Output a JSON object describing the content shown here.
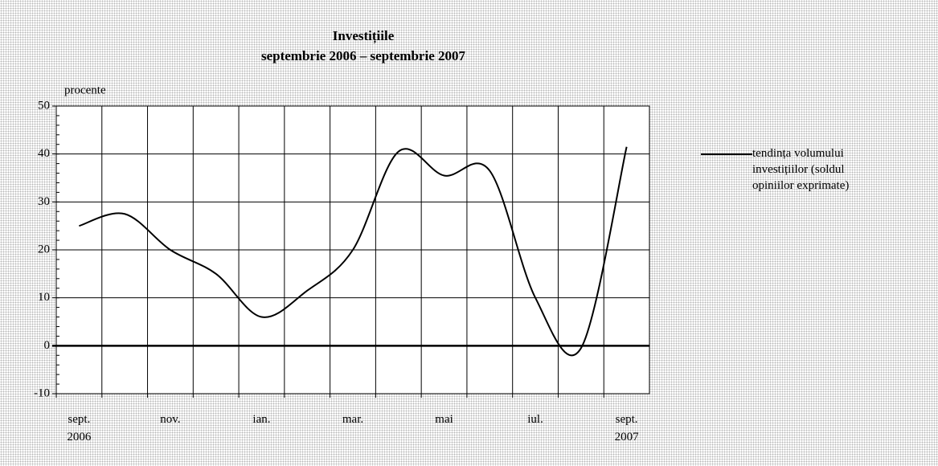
{
  "chart_data": {
    "type": "line",
    "title": "Investițiile",
    "subtitle": "septembrie 2006 – septembrie 2007",
    "ylabel": "procente",
    "categories": [
      "sept.\n2006",
      null,
      "nov.",
      null,
      "ian.",
      null,
      "mar.",
      null,
      "mai",
      null,
      "iul.",
      null,
      "sept.\n2007"
    ],
    "series": [
      {
        "name": "tendința volumului investițiilor (soldul opiniilor exprimate)",
        "color": "#000000",
        "values": [
          25,
          27.5,
          20,
          15,
          6,
          11.5,
          20,
          40.5,
          35.5,
          36.5,
          10,
          -0.5,
          41.5
        ]
      }
    ],
    "ylim": [
      -10,
      50
    ],
    "yticks": [
      -10,
      0,
      10,
      20,
      30,
      40,
      50
    ],
    "grid": true,
    "legend": "right",
    "smooth": true
  }
}
